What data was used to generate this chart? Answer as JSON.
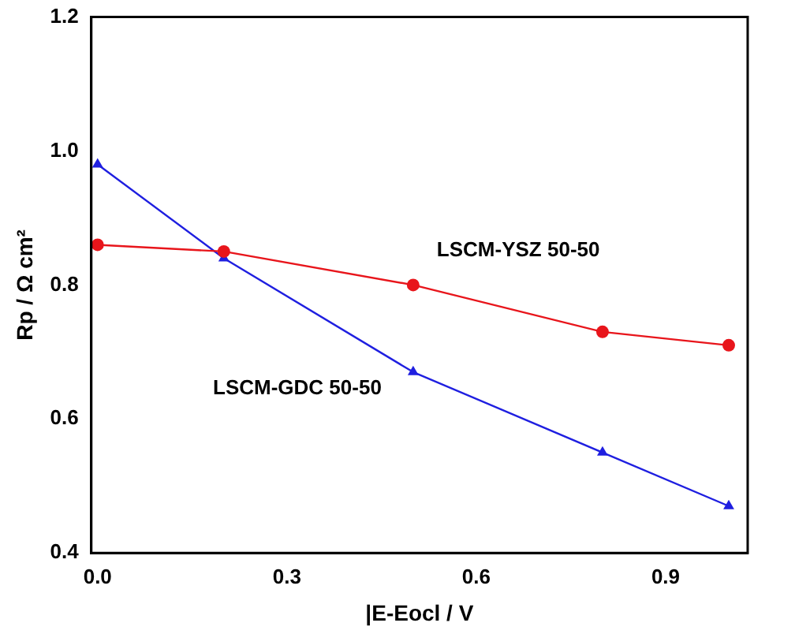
{
  "chart_data": {
    "type": "line",
    "xlabel": "|E-Eocl / V",
    "ylabel": "Rp / Ω cm²",
    "x": [
      0,
      0.2,
      0.5,
      0.8,
      1.0
    ],
    "series": [
      {
        "name": "LSCM-YSZ 50-50",
        "color": "#e8151b",
        "marker": "circle",
        "values": [
          0.86,
          0.85,
          0.8,
          0.73,
          0.71
        ]
      },
      {
        "name": "LSCM-GDC 50-50",
        "color": "#1f1fe0",
        "marker": "triangle",
        "values": [
          0.98,
          0.84,
          0.67,
          0.55,
          0.47
        ]
      }
    ],
    "xlim": [
      -0.01,
      1.03
    ],
    "xticks": [
      {
        "value": 0,
        "label": "0.0"
      },
      0.3,
      0.6,
      0.9
    ],
    "ylim": [
      0.4,
      1.2
    ],
    "yticks": [
      0.4,
      0.6,
      0.8,
      {
        "value": 1,
        "label": "1.0"
      },
      {
        "value": 1.2,
        "label": "1.2"
      }
    ],
    "grid": false,
    "legend": false
  }
}
